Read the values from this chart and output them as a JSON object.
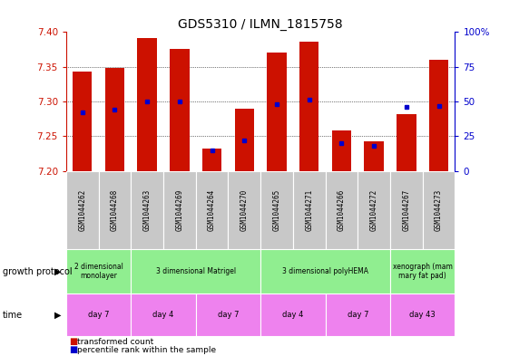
{
  "title": "GDS5310 / ILMN_1815758",
  "samples": [
    "GSM1044262",
    "GSM1044268",
    "GSM1044263",
    "GSM1044269",
    "GSM1044264",
    "GSM1044270",
    "GSM1044265",
    "GSM1044271",
    "GSM1044266",
    "GSM1044272",
    "GSM1044267",
    "GSM1044273"
  ],
  "transformed_counts": [
    7.343,
    7.348,
    7.392,
    7.376,
    7.232,
    7.29,
    7.37,
    7.386,
    7.258,
    7.242,
    7.282,
    7.36
  ],
  "percentile_ranks": [
    42,
    44,
    50,
    50,
    15,
    22,
    48,
    51,
    20,
    18,
    46,
    47
  ],
  "ylim_left": [
    7.2,
    7.4
  ],
  "ylim_right": [
    0,
    100
  ],
  "yticks_left": [
    7.2,
    7.25,
    7.3,
    7.35,
    7.4
  ],
  "yticks_right": [
    0,
    25,
    50,
    75,
    100
  ],
  "bar_color": "#CC1100",
  "blue_color": "#0000CC",
  "left_axis_color": "#CC1100",
  "right_axis_color": "#0000CC",
  "growth_protocol_groups": [
    {
      "label": "2 dimensional\nmonolayer",
      "start": 0,
      "end": 2,
      "color": "#90EE90"
    },
    {
      "label": "3 dimensional Matrigel",
      "start": 2,
      "end": 6,
      "color": "#90EE90"
    },
    {
      "label": "3 dimensional polyHEMA",
      "start": 6,
      "end": 10,
      "color": "#90EE90"
    },
    {
      "label": "xenograph (mam\nmary fat pad)",
      "start": 10,
      "end": 12,
      "color": "#90EE90"
    }
  ],
  "time_groups": [
    {
      "label": "day 7",
      "start": 0,
      "end": 2,
      "color": "#EE82EE"
    },
    {
      "label": "day 4",
      "start": 2,
      "end": 4,
      "color": "#EE82EE"
    },
    {
      "label": "day 7",
      "start": 4,
      "end": 6,
      "color": "#EE82EE"
    },
    {
      "label": "day 4",
      "start": 6,
      "end": 8,
      "color": "#EE82EE"
    },
    {
      "label": "day 7",
      "start": 8,
      "end": 10,
      "color": "#EE82EE"
    },
    {
      "label": "day 43",
      "start": 10,
      "end": 12,
      "color": "#EE82EE"
    }
  ],
  "legend_items": [
    {
      "label": "transformed count",
      "color": "#CC1100"
    },
    {
      "label": "percentile rank within the sample",
      "color": "#0000CC"
    }
  ],
  "bar_width": 0.6,
  "tick_bg_color": "#C8C8C8",
  "fig_width": 5.83,
  "fig_height": 3.93,
  "dpi": 100
}
